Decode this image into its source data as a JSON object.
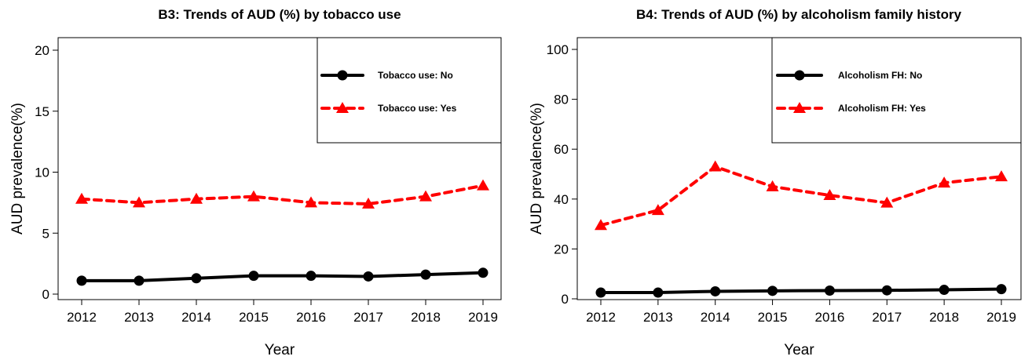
{
  "chart_data": [
    {
      "type": "line",
      "title": "B3: Trends of AUD (%) by tobacco use",
      "xlabel": "Year",
      "ylabel": "AUD prevalence(%)",
      "ylim": [
        0,
        20
      ],
      "yticks": [
        0,
        5,
        10,
        15,
        20
      ],
      "x": [
        2012,
        2013,
        2014,
        2015,
        2016,
        2017,
        2018,
        2019
      ],
      "grid": false,
      "legend": "top-right",
      "series": [
        {
          "name": "Tobacco use: No",
          "values": [
            1.1,
            1.1,
            1.3,
            1.5,
            1.5,
            1.45,
            1.6,
            1.75
          ],
          "color": "#000000",
          "line": "solid",
          "marker": "circle"
        },
        {
          "name": "Tobacco use: Yes",
          "values": [
            7.8,
            7.5,
            7.8,
            8.0,
            7.5,
            7.4,
            8.0,
            8.9
          ],
          "color": "#ff0000",
          "line": "dashed",
          "marker": "triangle"
        }
      ]
    },
    {
      "type": "line",
      "title": "B4: Trends of AUD (%) by alcoholism family history",
      "xlabel": "Year",
      "ylabel": "AUD prevalence(%)",
      "ylim": [
        0,
        100
      ],
      "yticks": [
        0,
        20,
        40,
        60,
        80,
        100
      ],
      "x": [
        2012,
        2013,
        2014,
        2015,
        2016,
        2017,
        2018,
        2019
      ],
      "grid": false,
      "legend": "top-right",
      "series": [
        {
          "name": "Alcoholism FH: No",
          "values": [
            2.5,
            2.5,
            3.0,
            3.2,
            3.3,
            3.4,
            3.6,
            3.9
          ],
          "color": "#000000",
          "line": "solid",
          "marker": "circle"
        },
        {
          "name": "Alcoholism FH: Yes",
          "values": [
            29.5,
            35.5,
            53.0,
            45.0,
            41.5,
            38.5,
            46.5,
            49.0
          ],
          "color": "#ff0000",
          "line": "dashed",
          "marker": "triangle"
        }
      ]
    }
  ]
}
